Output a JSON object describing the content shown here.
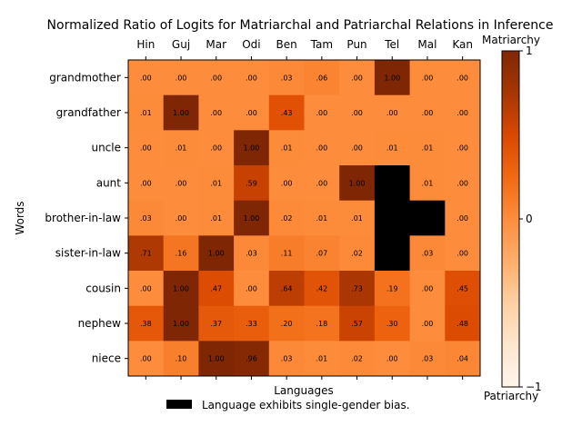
{
  "chart_data": {
    "type": "heatmap",
    "title": "Normalized Ratio of Logits for Matriarchal and Patriarchal Relations in Inference",
    "xlabel": "Languages",
    "ylabel": "Words",
    "x_categories": [
      "Hin",
      "Guj",
      "Mar",
      "Odi",
      "Ben",
      "Tam",
      "Pun",
      "Tel",
      "Mal",
      "Kan"
    ],
    "y_categories": [
      "grandmother",
      "grandfather",
      "uncle",
      "aunt",
      "brother-in-law",
      "sister-in-law",
      "cousin",
      "nephew",
      "niece"
    ],
    "values": [
      [
        0.0,
        0.0,
        0.0,
        0.0,
        0.03,
        0.06,
        0.0,
        1.0,
        0.0,
        0.0
      ],
      [
        0.01,
        1.0,
        0.0,
        0.0,
        0.43,
        0.0,
        0.0,
        0.0,
        0.0,
        0.0
      ],
      [
        0.0,
        0.01,
        0.0,
        1.0,
        0.01,
        0.0,
        0.0,
        0.01,
        0.01,
        0.0
      ],
      [
        0.0,
        0.0,
        0.01,
        0.59,
        0.0,
        0.0,
        1.0,
        null,
        0.01,
        0.0
      ],
      [
        0.03,
        0.0,
        0.01,
        1.0,
        0.02,
        0.01,
        0.01,
        null,
        null,
        0.0
      ],
      [
        0.71,
        0.16,
        1.0,
        0.03,
        0.11,
        0.07,
        0.02,
        null,
        0.03,
        0.0
      ],
      [
        0.0,
        1.0,
        0.47,
        0.0,
        0.64,
        0.42,
        0.73,
        0.19,
        0.0,
        0.45
      ],
      [
        0.38,
        1.0,
        0.37,
        0.33,
        0.2,
        0.18,
        0.57,
        0.3,
        0.0,
        0.48
      ],
      [
        0.0,
        0.1,
        1.0,
        0.96,
        0.03,
        0.01,
        0.02,
        0.0,
        0.03,
        0.04
      ]
    ],
    "labels": [
      [
        ".00",
        ".00",
        ".00",
        ".00",
        ".03",
        ".06",
        ".00",
        "1.00",
        ".00",
        ".00"
      ],
      [
        ".01",
        "1.00",
        ".00",
        ".00",
        ".43",
        ".00",
        ".00",
        ".00",
        ".00",
        ".00"
      ],
      [
        ".00",
        ".01",
        ".00",
        "1.00",
        ".01",
        ".00",
        ".00",
        ".01",
        ".01",
        ".00"
      ],
      [
        ".00",
        ".00",
        ".01",
        ".59",
        ".00",
        ".00",
        "1.00",
        "",
        ".01",
        ".00"
      ],
      [
        ".03",
        ".00",
        ".01",
        "1.00",
        ".02",
        ".01",
        ".01",
        "",
        "",
        ".00"
      ],
      [
        ".71",
        ".16",
        "1.00",
        ".03",
        ".11",
        ".07",
        ".02",
        "",
        ".03",
        ".00"
      ],
      [
        ".00",
        "1.00",
        ".47",
        ".00",
        ".64",
        ".42",
        ".73",
        ".19",
        ".00",
        ".45"
      ],
      [
        ".38",
        "1.00",
        ".37",
        ".33",
        ".20",
        ".18",
        ".57",
        ".30",
        ".00",
        ".48"
      ],
      [
        ".00",
        ".10",
        "1.00",
        ".96",
        ".03",
        ".01",
        ".02",
        ".00",
        ".03",
        ".04"
      ]
    ],
    "colormap": "Oranges",
    "colorbar": {
      "range": [
        -1,
        1
      ],
      "ticks": [
        "1",
        "0",
        "−1"
      ],
      "top_label": "Matriarchy",
      "bottom_label": "Patriarchy"
    },
    "missing_color": "#000000",
    "legend": {
      "placement": "bottom-center",
      "entries": [
        {
          "label": "Language exhibits single-gender bias.",
          "color": "#000000"
        }
      ]
    },
    "grid": false
  }
}
